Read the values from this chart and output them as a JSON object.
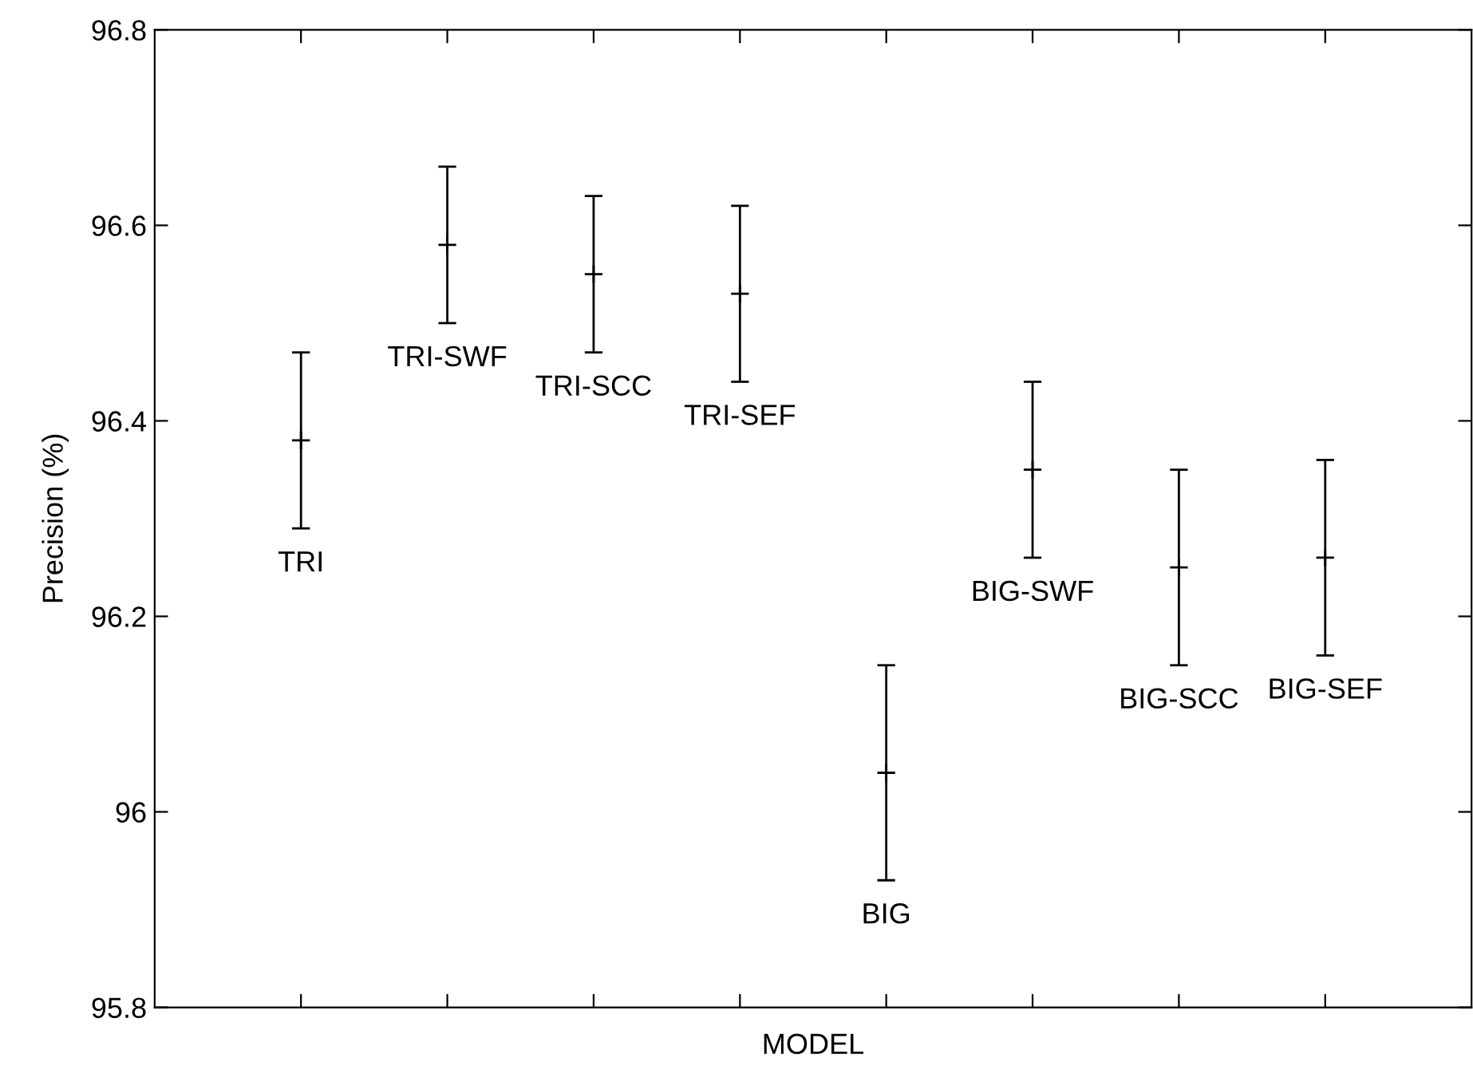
{
  "chart_data": {
    "type": "scatter",
    "xlabel": "MODEL",
    "ylabel": "Precision (%)",
    "categories": [
      null,
      null,
      null,
      null,
      null,
      null,
      null,
      null
    ],
    "series": [
      {
        "color": "#000000",
        "values": [
          96.38,
          96.58,
          96.55,
          96.53,
          96.04,
          96.35,
          96.25,
          96.26
        ],
        "errors": [
          0.09,
          0.08,
          0.08,
          0.09,
          0.11,
          0.09,
          0.1,
          0.1
        ]
      }
    ],
    "marker": "cross",
    "ylim": [
      95.8,
      96.8
    ],
    "yticks": [
      95.8,
      96,
      96.2,
      96.4,
      96.6,
      96.8
    ],
    "grid": false,
    "legend": false,
    "annotations": [
      "TRI",
      "TRI-SWF",
      "TRI-SCC",
      "TRI-SEF",
      "BIG",
      "BIG-SWF",
      "BIG-SCC",
      "BIG-SEF"
    ]
  }
}
